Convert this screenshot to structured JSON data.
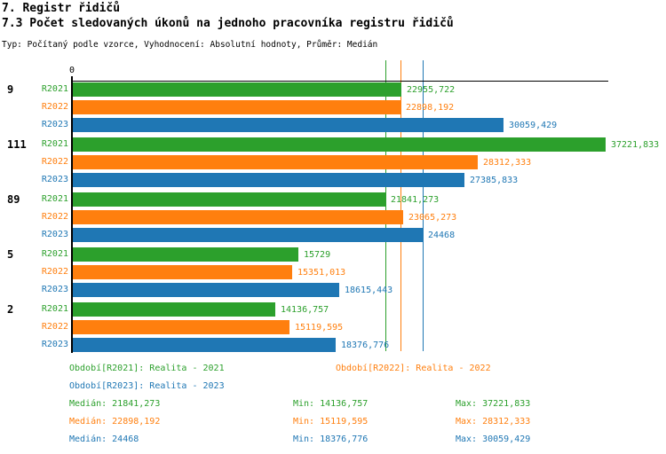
{
  "header": {
    "title": "7. Registr řidičů",
    "subtitle": "7.3 Počet sledovaných úkonů na jednoho pracovníka registru řidičů",
    "meta": "Typ: Počítaný podle vzorce, Vyhodnocení: Absolutní hodnoty, Průměr: Medián"
  },
  "colors": {
    "green": "#2ca02c",
    "orange": "#ff7f0e",
    "blue": "#1f77b4",
    "axis": "#000000"
  },
  "chart_data": {
    "type": "bar",
    "orientation": "horizontal",
    "origin_label": "0",
    "xlim": [
      0,
      37221.833
    ],
    "grid": "off",
    "series_labels": [
      "R2021",
      "R2022",
      "R2023"
    ],
    "series_colors": [
      "#2ca02c",
      "#ff7f0e",
      "#1f77b4"
    ],
    "groups": [
      {
        "label": "9",
        "values": [
          22955.722,
          22898.192,
          30059.429
        ],
        "value_labels": [
          "22955,722",
          "22898,192",
          "30059,429"
        ]
      },
      {
        "label": "111",
        "values": [
          37221.833,
          28312.333,
          27385.833
        ],
        "value_labels": [
          "37221,833",
          "28312,333",
          "27385,833"
        ]
      },
      {
        "label": "89",
        "values": [
          21841.273,
          23065.273,
          24468
        ],
        "value_labels": [
          "21841,273",
          "23065,273",
          "24468"
        ]
      },
      {
        "label": "5",
        "values": [
          15729,
          15351.013,
          18615.443
        ],
        "value_labels": [
          "15729",
          "15351,013",
          "18615,443"
        ]
      },
      {
        "label": "2",
        "values": [
          14136.757,
          15119.595,
          18376.776
        ],
        "value_labels": [
          "14136,757",
          "15119,595",
          "18376,776"
        ]
      }
    ],
    "median_lines": [
      {
        "value": 21841.273,
        "color": "#2ca02c"
      },
      {
        "value": 22898.192,
        "color": "#ff7f0e"
      },
      {
        "value": 24468,
        "color": "#1f77b4"
      }
    ]
  },
  "legend": {
    "periods": [
      {
        "label": "Období[R2021]: Realita - 2021",
        "color": "green"
      },
      {
        "label": "Období[R2022]: Realita - 2022",
        "color": "orange"
      },
      {
        "label": "Období[R2023]: Realita - 2023",
        "color": "blue"
      }
    ],
    "stats": [
      {
        "median": "Medián: 21841,273",
        "min": "Min: 14136,757",
        "max": "Max: 37221,833",
        "color": "green"
      },
      {
        "median": "Medián: 22898,192",
        "min": "Min: 15119,595",
        "max": "Max: 28312,333",
        "color": "orange"
      },
      {
        "median": "Medián: 24468",
        "min": "Min: 18376,776",
        "max": "Max: 30059,429",
        "color": "blue"
      }
    ]
  }
}
